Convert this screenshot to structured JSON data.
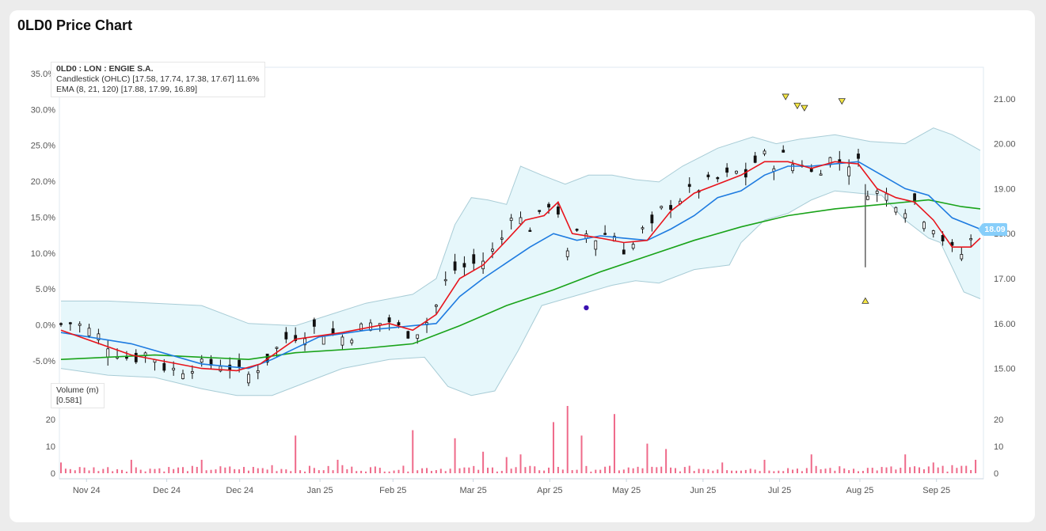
{
  "card": {
    "title": "0LD0 Price Chart"
  },
  "legend": {
    "symbol": "0LD0 : LON : ENGIE S.A.",
    "candle": "Candlestick (OHLC) [17.58, 17.74, 17.38, 17.67] 11.6%",
    "ema": "EMA (8, 21, 120) [17.88, 17.99, 16.89]"
  },
  "volume_legend": {
    "title": "Volume (m)",
    "value": "[0.581]"
  },
  "last_price": "18.09",
  "colors": {
    "candle": "#111111",
    "ema_fast": "#e8141c",
    "ema_mid": "#1e7be0",
    "ema_slow": "#19a319",
    "band_fill": "#e6f7fb",
    "band_line": "#a8ccd6",
    "volume": "#ef6a8a",
    "marker_fill": "#f5e642",
    "dot": "#3a10b0",
    "axis_text": "#555555",
    "badge": "#87cefa"
  },
  "chart_data": {
    "type": "candlestick",
    "price_axis": {
      "ticks": [
        15.0,
        16.0,
        17.0,
        18.0,
        19.0,
        20.0,
        21.0
      ],
      "labels": [
        "15.00",
        "16.00",
        "17.00",
        "18.00",
        "19.00",
        "20.00",
        "21.00"
      ],
      "range": [
        14.5,
        21.7
      ]
    },
    "pct_axis": {
      "ticks": [
        -5,
        0,
        5,
        10,
        15,
        20,
        25,
        30,
        35
      ],
      "labels": [
        "-5.0%",
        "0.0%",
        "5.0%",
        "10.0%",
        "15.0%",
        "20.0%",
        "25.0%",
        "30.0%",
        "35.0%"
      ]
    },
    "volume_axis": {
      "ticks": [
        0,
        10,
        20
      ],
      "labels": [
        "0",
        "10",
        "20"
      ],
      "range": [
        0,
        25
      ]
    },
    "x_labels": [
      "Nov 24",
      "Dec 24",
      "Dec 24",
      "Jan 25",
      "Feb 25",
      "Mar 25",
      "Apr 25",
      "May 25",
      "Jun 25",
      "Jul 25",
      "Aug 25",
      "Sep 25"
    ],
    "x_label_positions": [
      7,
      29,
      49,
      71,
      91,
      113,
      134,
      155,
      176,
      197,
      219,
      240
    ],
    "bars": 252,
    "close_path": [
      [
        0,
        15.98
      ],
      [
        5,
        16.05
      ],
      [
        10,
        15.9
      ],
      [
        15,
        15.75
      ],
      [
        20,
        15.55
      ],
      [
        25,
        15.35
      ],
      [
        30,
        15.2
      ],
      [
        35,
        15.35
      ],
      [
        40,
        15.25
      ],
      [
        45,
        15.0
      ],
      [
        50,
        14.95
      ],
      [
        55,
        15.1
      ],
      [
        60,
        15.05
      ],
      [
        65,
        15.1
      ],
      [
        70,
        15.15
      ],
      [
        75,
        14.9
      ],
      [
        80,
        14.85
      ],
      [
        85,
        15.1
      ],
      [
        90,
        15.3
      ],
      [
        95,
        15.65
      ],
      [
        100,
        15.75
      ],
      [
        105,
        15.85
      ],
      [
        110,
        15.9
      ],
      [
        115,
        15.75
      ],
      [
        120,
        15.7
      ],
      [
        125,
        15.8
      ],
      [
        130,
        15.95
      ],
      [
        135,
        16.0
      ],
      [
        140,
        16.05
      ],
      [
        145,
        15.85
      ],
      [
        150,
        15.8
      ],
      [
        155,
        15.95
      ],
      [
        160,
        16.4
      ],
      [
        163,
        16.85
      ],
      [
        168,
        17.2
      ],
      [
        175,
        17.3
      ],
      [
        182,
        17.45
      ],
      [
        188,
        17.9
      ],
      [
        192,
        18.5
      ],
      [
        196,
        18.3
      ],
      [
        202,
        18.1
      ],
      [
        206,
        18.6
      ],
      [
        210,
        18.8
      ],
      [
        213,
        18.35
      ],
      [
        216,
        17.5
      ],
      [
        219,
        17.8
      ],
      [
        222,
        18.2
      ],
      [
        225,
        17.9
      ],
      [
        230,
        17.9
      ],
      [
        234,
        18.1
      ],
      [
        238,
        17.85
      ],
      [
        242,
        17.5
      ],
      [
        246,
        18.0
      ],
      [
        250,
        18.1
      ],
      [
        252,
        18.1
      ],
      [
        256,
        18.5
      ],
      [
        262,
        18.75
      ],
      [
        268,
        18.9
      ],
      [
        274,
        19.05
      ],
      [
        280,
        19.2
      ],
      [
        284,
        19.25
      ],
      [
        288,
        19.35
      ],
      [
        292,
        19.3
      ],
      [
        296,
        19.6
      ],
      [
        300,
        19.7
      ],
      [
        304,
        19.6
      ],
      [
        308,
        19.7
      ],
      [
        312,
        19.55
      ],
      [
        316,
        19.6
      ],
      [
        320,
        19.35
      ],
      [
        324,
        19.5
      ],
      [
        328,
        19.65
      ],
      [
        332,
        19.6
      ],
      [
        336,
        19.6
      ],
      [
        340,
        19.55
      ],
      [
        344,
        19.0
      ],
      [
        348,
        18.9
      ],
      [
        352,
        18.85
      ],
      [
        356,
        18.75
      ],
      [
        360,
        18.6
      ],
      [
        364,
        18.7
      ],
      [
        368,
        18.4
      ],
      [
        372,
        18.2
      ],
      [
        376,
        17.9
      ],
      [
        380,
        17.6
      ],
      [
        384,
        17.55
      ],
      [
        388,
        17.85
      ],
      [
        392,
        18.05
      ]
    ],
    "ema_fast": [
      [
        0,
        15.85
      ],
      [
        30,
        15.3
      ],
      [
        60,
        15.0
      ],
      [
        75,
        14.95
      ],
      [
        85,
        15.1
      ],
      [
        100,
        15.65
      ],
      [
        120,
        15.8
      ],
      [
        140,
        16.0
      ],
      [
        150,
        15.85
      ],
      [
        160,
        16.2
      ],
      [
        170,
        17.0
      ],
      [
        180,
        17.3
      ],
      [
        190,
        17.85
      ],
      [
        198,
        18.3
      ],
      [
        206,
        18.4
      ],
      [
        212,
        18.7
      ],
      [
        218,
        18.0
      ],
      [
        230,
        17.9
      ],
      [
        240,
        17.8
      ],
      [
        250,
        17.85
      ],
      [
        260,
        18.5
      ],
      [
        270,
        18.9
      ],
      [
        280,
        19.1
      ],
      [
        290,
        19.3
      ],
      [
        300,
        19.6
      ],
      [
        310,
        19.6
      ],
      [
        320,
        19.45
      ],
      [
        330,
        19.6
      ],
      [
        340,
        19.55
      ],
      [
        348,
        19.0
      ],
      [
        356,
        18.8
      ],
      [
        364,
        18.7
      ],
      [
        372,
        18.3
      ],
      [
        380,
        17.7
      ],
      [
        388,
        17.7
      ],
      [
        392,
        17.9
      ]
    ],
    "ema_mid": [
      [
        0,
        15.8
      ],
      [
        30,
        15.55
      ],
      [
        60,
        15.1
      ],
      [
        80,
        15.0
      ],
      [
        90,
        15.2
      ],
      [
        110,
        15.7
      ],
      [
        130,
        15.85
      ],
      [
        150,
        15.95
      ],
      [
        160,
        16.0
      ],
      [
        170,
        16.6
      ],
      [
        180,
        17.0
      ],
      [
        190,
        17.35
      ],
      [
        200,
        17.7
      ],
      [
        210,
        18.0
      ],
      [
        220,
        17.85
      ],
      [
        230,
        17.95
      ],
      [
        240,
        17.9
      ],
      [
        250,
        17.85
      ],
      [
        260,
        18.1
      ],
      [
        270,
        18.4
      ],
      [
        280,
        18.8
      ],
      [
        290,
        18.95
      ],
      [
        300,
        19.3
      ],
      [
        310,
        19.5
      ],
      [
        320,
        19.5
      ],
      [
        330,
        19.55
      ],
      [
        340,
        19.6
      ],
      [
        350,
        19.3
      ],
      [
        360,
        19.0
      ],
      [
        370,
        18.85
      ],
      [
        380,
        18.35
      ],
      [
        392,
        18.1
      ]
    ],
    "ema_slow": [
      [
        0,
        15.2
      ],
      [
        40,
        15.3
      ],
      [
        80,
        15.2
      ],
      [
        100,
        15.35
      ],
      [
        130,
        15.45
      ],
      [
        150,
        15.55
      ],
      [
        170,
        15.95
      ],
      [
        190,
        16.4
      ],
      [
        210,
        16.75
      ],
      [
        230,
        17.15
      ],
      [
        250,
        17.5
      ],
      [
        270,
        17.85
      ],
      [
        290,
        18.15
      ],
      [
        310,
        18.4
      ],
      [
        330,
        18.55
      ],
      [
        350,
        18.65
      ],
      [
        370,
        18.75
      ],
      [
        384,
        18.6
      ],
      [
        392,
        18.55
      ]
    ],
    "band_upper": [
      [
        0,
        16.5
      ],
      [
        20,
        16.5
      ],
      [
        40,
        16.45
      ],
      [
        60,
        16.4
      ],
      [
        80,
        16.0
      ],
      [
        100,
        15.95
      ],
      [
        115,
        16.2
      ],
      [
        130,
        16.45
      ],
      [
        150,
        16.65
      ],
      [
        160,
        17.0
      ],
      [
        168,
        18.2
      ],
      [
        175,
        18.8
      ],
      [
        182,
        18.75
      ],
      [
        190,
        18.65
      ],
      [
        196,
        19.5
      ],
      [
        205,
        19.3
      ],
      [
        215,
        19.1
      ],
      [
        225,
        19.3
      ],
      [
        235,
        19.3
      ],
      [
        245,
        19.2
      ],
      [
        255,
        19.15
      ],
      [
        265,
        19.5
      ],
      [
        280,
        19.9
      ],
      [
        295,
        20.15
      ],
      [
        305,
        20.0
      ],
      [
        315,
        20.1
      ],
      [
        330,
        20.2
      ],
      [
        345,
        20.05
      ],
      [
        360,
        20.0
      ],
      [
        372,
        20.35
      ],
      [
        380,
        20.2
      ],
      [
        392,
        19.85
      ]
    ],
    "band_lower": [
      [
        0,
        15.0
      ],
      [
        20,
        14.85
      ],
      [
        40,
        14.8
      ],
      [
        60,
        14.55
      ],
      [
        75,
        14.4
      ],
      [
        90,
        14.4
      ],
      [
        105,
        14.7
      ],
      [
        120,
        15.0
      ],
      [
        140,
        15.2
      ],
      [
        155,
        15.25
      ],
      [
        165,
        14.6
      ],
      [
        175,
        14.4
      ],
      [
        185,
        14.5
      ],
      [
        195,
        15.4
      ],
      [
        205,
        16.4
      ],
      [
        215,
        16.55
      ],
      [
        225,
        16.7
      ],
      [
        235,
        16.85
      ],
      [
        245,
        16.95
      ],
      [
        255,
        16.9
      ],
      [
        270,
        17.2
      ],
      [
        285,
        17.3
      ],
      [
        290,
        17.8
      ],
      [
        300,
        18.3
      ],
      [
        310,
        18.45
      ],
      [
        320,
        18.75
      ],
      [
        330,
        18.95
      ],
      [
        340,
        18.9
      ],
      [
        350,
        18.85
      ],
      [
        360,
        18.3
      ],
      [
        370,
        17.9
      ],
      [
        375,
        17.8
      ],
      [
        385,
        16.7
      ],
      [
        392,
        16.55
      ]
    ],
    "markers_down": [
      [
        309,
        21.05
      ],
      [
        314,
        20.85
      ],
      [
        317,
        20.8
      ],
      [
        333,
        20.95
      ]
    ],
    "markers_up": [
      [
        343,
        16.5
      ]
    ],
    "dots": [
      [
        224,
        16.35
      ]
    ],
    "volume": [
      [
        0,
        4
      ],
      [
        15,
        3
      ],
      [
        30,
        5
      ],
      [
        45,
        3
      ],
      [
        60,
        5
      ],
      [
        75,
        3
      ],
      [
        90,
        3
      ],
      [
        100,
        14
      ],
      [
        103,
        13
      ],
      [
        118,
        5
      ],
      [
        120,
        3
      ],
      [
        135,
        6
      ],
      [
        150,
        16
      ],
      [
        155,
        12
      ],
      [
        165,
        5
      ],
      [
        168,
        13
      ],
      [
        175,
        10
      ],
      [
        180,
        8
      ],
      [
        190,
        6
      ],
      [
        196,
        7
      ],
      [
        210,
        19
      ],
      [
        216,
        25
      ],
      [
        222,
        14
      ],
      [
        229,
        25
      ],
      [
        236,
        22
      ],
      [
        250,
        11
      ],
      [
        258,
        9
      ],
      [
        282,
        4
      ],
      [
        300,
        5
      ],
      [
        320,
        7
      ],
      [
        345,
        6
      ],
      [
        360,
        7
      ],
      [
        372,
        4
      ],
      [
        380,
        3
      ],
      [
        390,
        5
      ]
    ]
  }
}
